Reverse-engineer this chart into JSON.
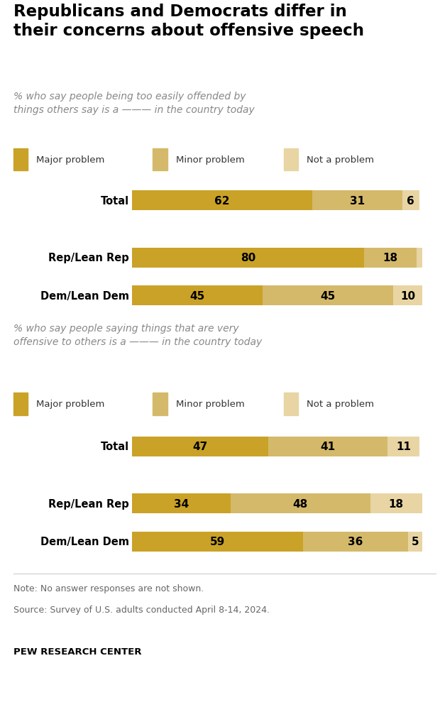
{
  "title": "Republicans and Democrats differ in\ntheir concerns about offensive speech",
  "title_fontsize": 16.5,
  "colors": {
    "major": "#C9A227",
    "minor": "#D4B96A",
    "not": "#E8D5A3"
  },
  "legend_labels": [
    "Major problem",
    "Minor problem",
    "Not a problem"
  ],
  "section1": {
    "categories": [
      "Total",
      "Rep/Lean Rep",
      "Dem/Lean Dem"
    ],
    "major": [
      62,
      80,
      45
    ],
    "minor": [
      31,
      18,
      45
    ],
    "not": [
      6,
      2,
      10
    ],
    "show_not": [
      true,
      false,
      true
    ]
  },
  "section2": {
    "categories": [
      "Total",
      "Rep/Lean Rep",
      "Dem/Lean Dem"
    ],
    "major": [
      47,
      34,
      59
    ],
    "minor": [
      41,
      48,
      36
    ],
    "not": [
      11,
      18,
      5
    ],
    "show_not": [
      true,
      true,
      true
    ]
  },
  "note_line1": "Note: No answer responses are not shown.",
  "note_line2": "Source: Survey of U.S. adults conducted April 8-14, 2024.",
  "footer": "PEW RESEARCH CENTER",
  "bg_color": "#ffffff",
  "bar_height": 0.52,
  "sub1_normal": "% who say ",
  "sub1_bold": "people being too easily offended by\nthings others say",
  "sub1_rest_bold": " is a ",
  "sub1_blank": "____",
  "sub1_rest": " in the country today",
  "sub2_normal": "% who say ",
  "sub2_bold": "people saying things that are very\noffensive to others",
  "sub2_rest_bold": " is a ",
  "sub2_blank": "____",
  "sub2_rest": " in the country today"
}
